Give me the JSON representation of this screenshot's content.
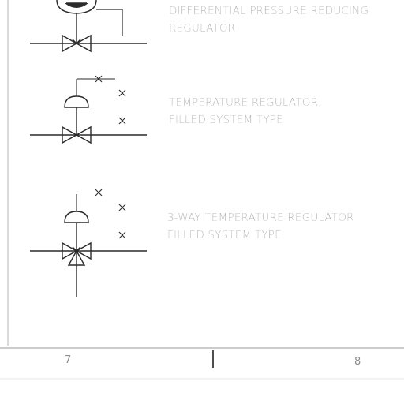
{
  "symbols": [
    {
      "line1": "DIFFERENTIAL PRESSURE REDUCING",
      "line2": "REGULATOR"
    },
    {
      "line1": "TEMPERATURE REGULATOR",
      "line2": "FILLED SYSTEM TYPE"
    },
    {
      "line1": "3-WAY TEMPERATURE REGULATOR",
      "line2": "FILLED SYSTEM TYPE"
    }
  ],
  "footer": {
    "left_page": "7",
    "right_page": "8"
  },
  "colors": {
    "line": "#2a2a2a",
    "text": "#9a9a9a",
    "frame": "#b5b5b5"
  }
}
